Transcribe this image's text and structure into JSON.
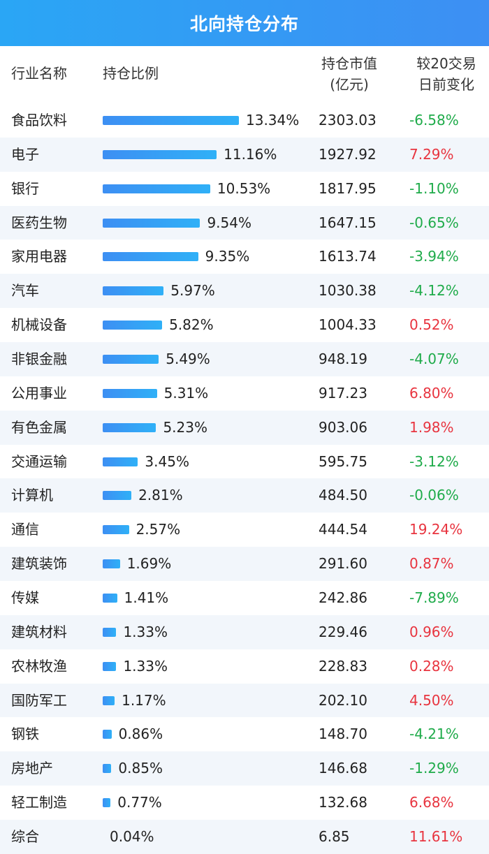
{
  "title": "北向持仓分布",
  "header": {
    "industry": "行业名称",
    "ratio": "持仓比例",
    "market_value_line1": "持仓市值",
    "market_value_line2": "(亿元)",
    "change_line1": "较20交易",
    "change_line2": "日前变化"
  },
  "colors": {
    "title_bg": "#3d8ff3",
    "bar": "#3d8ff3",
    "negative": "#1fab4a",
    "positive": "#e8343f",
    "alt_row": "#f2f6fb"
  },
  "chart_data": {
    "type": "table",
    "title": "北向持仓分布",
    "columns": [
      "行业名称",
      "持仓比例",
      "持仓市值(亿元)",
      "较20交易日前变化"
    ],
    "rows": [
      {
        "name": "食品饮料",
        "ratio": 13.34,
        "ratio_label": "13.34%",
        "mv": "2303.03",
        "chg": "-6.58%"
      },
      {
        "name": "电子",
        "ratio": 11.16,
        "ratio_label": "11.16%",
        "mv": "1927.92",
        "chg": "7.29%"
      },
      {
        "name": "银行",
        "ratio": 10.53,
        "ratio_label": "10.53%",
        "mv": "1817.95",
        "chg": "-1.10%"
      },
      {
        "name": "医药生物",
        "ratio": 9.54,
        "ratio_label": "9.54%",
        "mv": "1647.15",
        "chg": "-0.65%"
      },
      {
        "name": "家用电器",
        "ratio": 9.35,
        "ratio_label": "9.35%",
        "mv": "1613.74",
        "chg": "-3.94%"
      },
      {
        "name": "汽车",
        "ratio": 5.97,
        "ratio_label": "5.97%",
        "mv": "1030.38",
        "chg": "-4.12%"
      },
      {
        "name": "机械设备",
        "ratio": 5.82,
        "ratio_label": "5.82%",
        "mv": "1004.33",
        "chg": "0.52%"
      },
      {
        "name": "非银金融",
        "ratio": 5.49,
        "ratio_label": "5.49%",
        "mv": "948.19",
        "chg": "-4.07%"
      },
      {
        "name": "公用事业",
        "ratio": 5.31,
        "ratio_label": "5.31%",
        "mv": "917.23",
        "chg": "6.80%"
      },
      {
        "name": "有色金属",
        "ratio": 5.23,
        "ratio_label": "5.23%",
        "mv": "903.06",
        "chg": "1.98%"
      },
      {
        "name": "交通运输",
        "ratio": 3.45,
        "ratio_label": "3.45%",
        "mv": "595.75",
        "chg": "-3.12%"
      },
      {
        "name": "计算机",
        "ratio": 2.81,
        "ratio_label": "2.81%",
        "mv": "484.50",
        "chg": "-0.06%"
      },
      {
        "name": "通信",
        "ratio": 2.57,
        "ratio_label": "2.57%",
        "mv": "444.54",
        "chg": "19.24%"
      },
      {
        "name": "建筑装饰",
        "ratio": 1.69,
        "ratio_label": "1.69%",
        "mv": "291.60",
        "chg": "0.87%"
      },
      {
        "name": "传媒",
        "ratio": 1.41,
        "ratio_label": "1.41%",
        "mv": "242.86",
        "chg": "-7.89%"
      },
      {
        "name": "建筑材料",
        "ratio": 1.33,
        "ratio_label": "1.33%",
        "mv": "229.46",
        "chg": "0.96%"
      },
      {
        "name": "农林牧渔",
        "ratio": 1.33,
        "ratio_label": "1.33%",
        "mv": "228.83",
        "chg": "0.28%"
      },
      {
        "name": "国防军工",
        "ratio": 1.17,
        "ratio_label": "1.17%",
        "mv": "202.10",
        "chg": "4.50%"
      },
      {
        "name": "钢铁",
        "ratio": 0.86,
        "ratio_label": "0.86%",
        "mv": "148.70",
        "chg": "-4.21%"
      },
      {
        "name": "房地产",
        "ratio": 0.85,
        "ratio_label": "0.85%",
        "mv": "146.68",
        "chg": "-1.29%"
      },
      {
        "name": "轻工制造",
        "ratio": 0.77,
        "ratio_label": "0.77%",
        "mv": "132.68",
        "chg": "6.68%"
      },
      {
        "name": "综合",
        "ratio": 0.04,
        "ratio_label": "0.04%",
        "mv": "6.85",
        "chg": "11.61%"
      }
    ]
  }
}
